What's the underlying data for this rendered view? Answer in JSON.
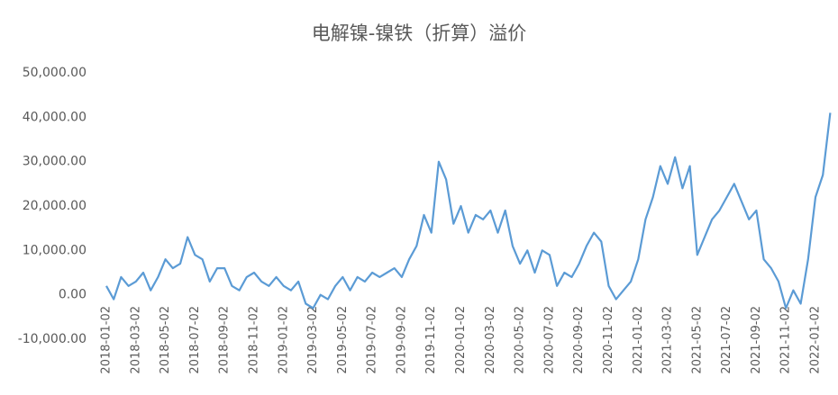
{
  "chart_data": {
    "type": "line",
    "title": "电解镍-镍铁（折算）溢价",
    "categories": [
      "2018-01-02",
      null,
      null,
      null,
      "2018-03-02",
      null,
      null,
      null,
      "2018-05-02",
      null,
      null,
      null,
      "2018-07-02",
      null,
      null,
      null,
      "2018-09-02",
      null,
      null,
      null,
      "2018-11-02",
      null,
      null,
      null,
      "2019-01-02",
      null,
      null,
      null,
      "2019-03-02",
      null,
      null,
      null,
      "2019-05-02",
      null,
      null,
      null,
      "2019-07-02",
      null,
      null,
      null,
      "2019-09-02",
      null,
      null,
      null,
      "2019-11-02",
      null,
      null,
      null,
      "2020-01-02",
      null,
      null,
      null,
      "2020-03-02",
      null,
      null,
      null,
      "2020-05-02",
      null,
      null,
      null,
      "2020-07-02",
      null,
      null,
      null,
      "2020-09-02",
      null,
      null,
      null,
      "2020-11-02",
      null,
      null,
      null,
      "2021-01-02",
      null,
      null,
      null,
      "2021-03-02",
      null,
      null,
      null,
      "2021-05-02",
      null,
      null,
      null,
      "2021-07-02",
      null,
      null,
      null,
      "2021-09-02",
      null,
      null,
      null,
      "2021-11-02",
      null,
      null,
      null,
      "2022-01-02",
      null,
      null
    ],
    "values": [
      2000,
      -1000,
      4000,
      2000,
      3000,
      5000,
      1000,
      4000,
      8000,
      6000,
      7000,
      13000,
      9000,
      8000,
      3000,
      6000,
      6000,
      2000,
      1000,
      4000,
      5000,
      3000,
      2000,
      4000,
      2000,
      1000,
      3000,
      -2000,
      -3000,
      0,
      -1000,
      2000,
      4000,
      1000,
      4000,
      3000,
      5000,
      4000,
      5000,
      6000,
      4000,
      8000,
      11000,
      18000,
      14000,
      30000,
      26000,
      16000,
      20000,
      14000,
      18000,
      17000,
      19000,
      14000,
      19000,
      11000,
      7000,
      10000,
      5000,
      10000,
      9000,
      2000,
      5000,
      4000,
      7000,
      11000,
      14000,
      12000,
      2000,
      -1000,
      1000,
      3000,
      8000,
      17000,
      22000,
      29000,
      25000,
      31000,
      24000,
      29000,
      9000,
      13000,
      17000,
      19000,
      22000,
      25000,
      21000,
      17000,
      19000,
      8000,
      6000,
      3000,
      -3000,
      1000,
      -2000,
      8000,
      22000,
      27000,
      41000
    ],
    "color": "#5b9bd5",
    "ylim": [
      -10000,
      50000
    ],
    "yticks": [
      {
        "value": -10000,
        "label": "-10,000.00"
      },
      {
        "value": 0,
        "label": "0.00"
      },
      {
        "value": 10000,
        "label": "10,000.00"
      },
      {
        "value": 20000,
        "label": "20,000.00"
      },
      {
        "value": 30000,
        "label": "30,000.00"
      },
      {
        "value": 40000,
        "label": "40,000.00"
      },
      {
        "value": 50000,
        "label": "50,000.00"
      }
    ],
    "grid": false
  }
}
